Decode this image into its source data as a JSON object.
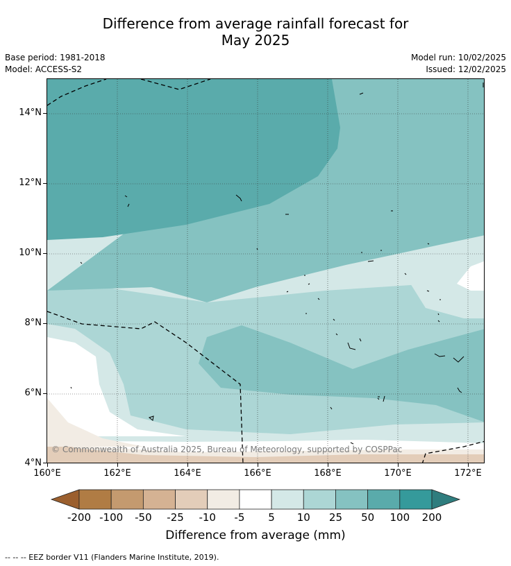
{
  "header": {
    "title_line1": "Difference from average rainfall forecast for",
    "title_line2": "May 2025",
    "base_period": "Base period: 1981-2018",
    "model": "Model: ACCESS-S2",
    "model_run": "Model run: 10/02/2025",
    "issued": "Issued: 12/02/2025"
  },
  "map": {
    "lat_labels": [
      "14°N",
      "12°N",
      "10°N",
      "8°N",
      "6°N",
      "4°N"
    ],
    "lon_labels": [
      "160°E",
      "162°E",
      "164°E",
      "166°E",
      "168°E",
      "170°E",
      "172°E"
    ],
    "extent": {
      "lon_min": 160,
      "lon_max": 172.5,
      "lat_min": 4,
      "lat_max": 15
    },
    "copyright": "© Commonwealth of Australia 2025, Bureau of Meteorology, supported by COSPPac"
  },
  "colorbar": {
    "labels": [
      "-200",
      "-100",
      "-50",
      "-25",
      "-10",
      "-5",
      "5",
      "10",
      "25",
      "50",
      "100",
      "200"
    ],
    "colors": [
      "#9b5f2e",
      "#b07c44",
      "#c49a6f",
      "#d5b293",
      "#e3cdb9",
      "#f2ece4",
      "#ffffff",
      "#d4e8e7",
      "#acd6d5",
      "#85c2c1",
      "#5aabab",
      "#359a9b",
      "#2f7d7e"
    ],
    "title": "Difference from average (mm)"
  },
  "footnote": "--  --  -- EEZ border V11 (Flanders Marine Institute, 2019)."
}
